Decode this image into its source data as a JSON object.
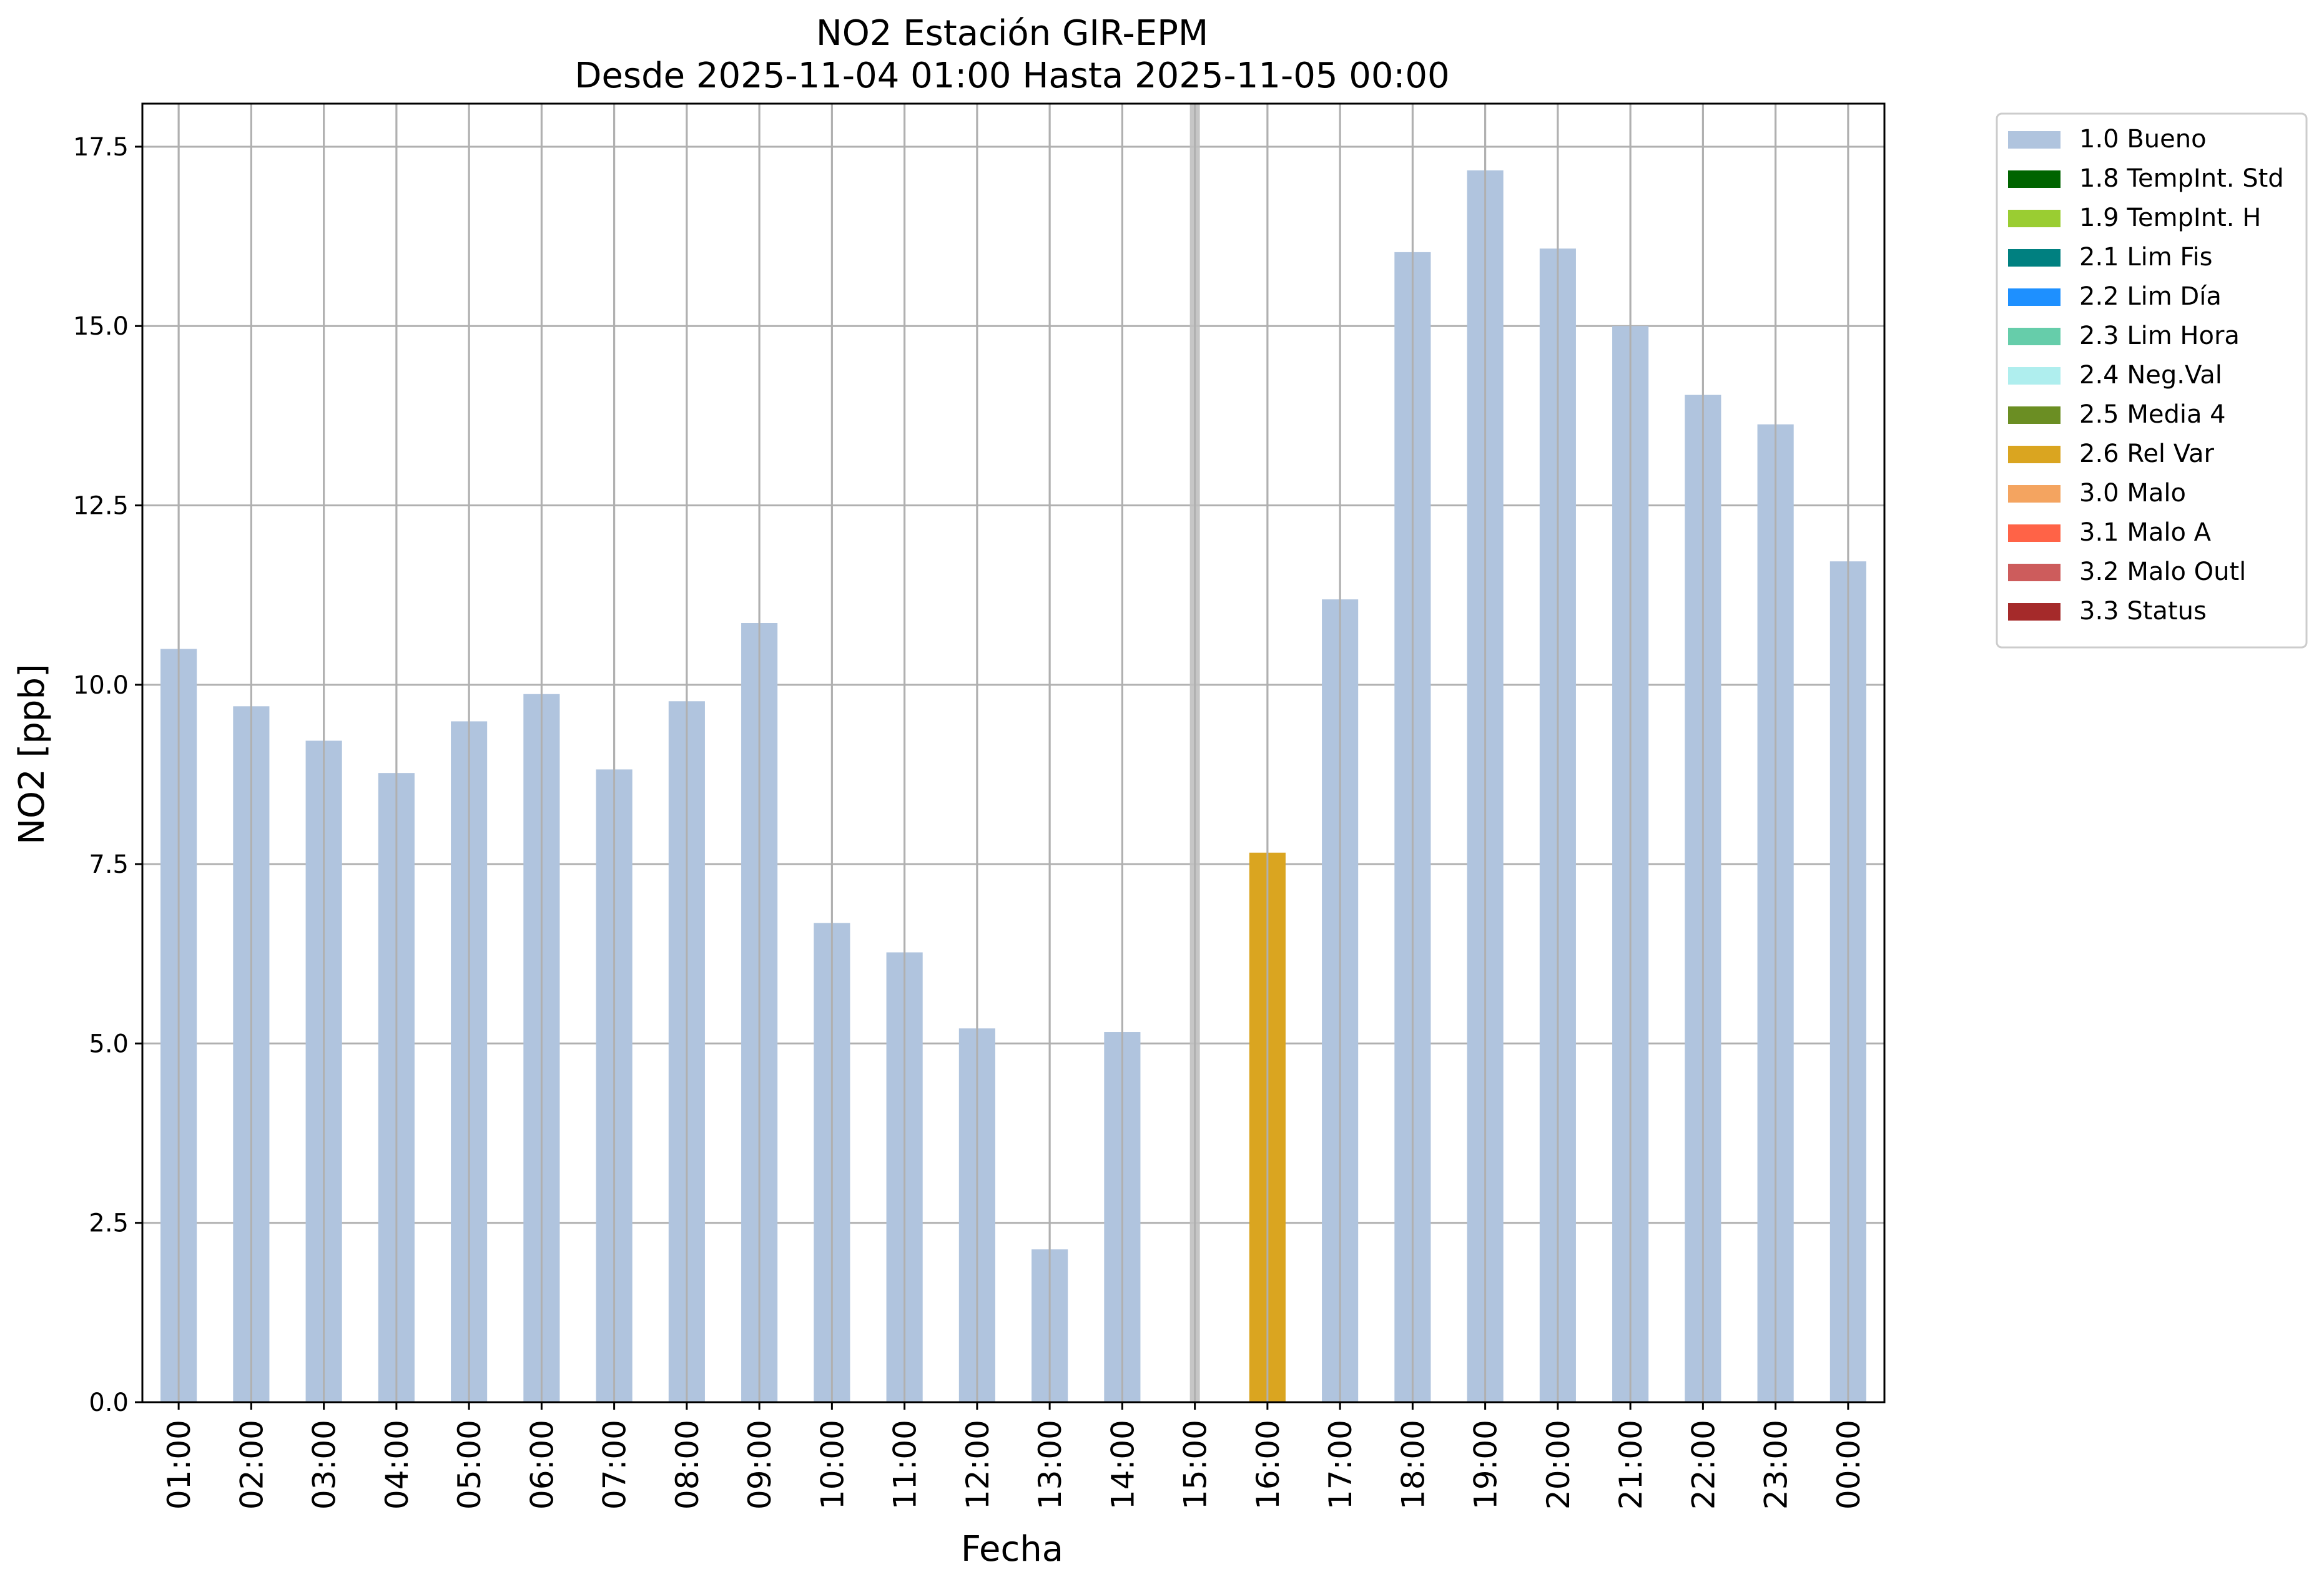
{
  "chart_data": {
    "type": "bar",
    "title": "NO2 Estación GIR-EPM",
    "subtitle": "Desde 2025-11-04 01:00 Hasta 2025-11-05 00:00",
    "xlabel": "Fecha",
    "ylabel": "NO2 [ppb]",
    "ylim": [
      0,
      18.1
    ],
    "yticks": [
      "0.0",
      "2.5",
      "5.0",
      "7.5",
      "10.0",
      "12.5",
      "15.0",
      "17.5"
    ],
    "grid": true,
    "legend_position": "outside-top-right",
    "categories": [
      "01:00",
      "02:00",
      "03:00",
      "04:00",
      "05:00",
      "06:00",
      "07:00",
      "08:00",
      "09:00",
      "10:00",
      "11:00",
      "12:00",
      "13:00",
      "14:00",
      "15:00",
      "16:00",
      "17:00",
      "18:00",
      "19:00",
      "20:00",
      "21:00",
      "22:00",
      "23:00",
      "00:00"
    ],
    "values": [
      10.5,
      9.7,
      9.22,
      8.77,
      9.49,
      9.87,
      8.82,
      9.77,
      10.86,
      6.68,
      6.27,
      5.21,
      2.13,
      5.16,
      null,
      7.66,
      11.19,
      16.03,
      17.17,
      16.08,
      15.0,
      14.04,
      13.63,
      11.72
    ],
    "flags": [
      "1.0 Bueno",
      "1.0 Bueno",
      "1.0 Bueno",
      "1.0 Bueno",
      "1.0 Bueno",
      "1.0 Bueno",
      "1.0 Bueno",
      "1.0 Bueno",
      "1.0 Bueno",
      "1.0 Bueno",
      "1.0 Bueno",
      "1.0 Bueno",
      "1.0 Bueno",
      "1.0 Bueno",
      null,
      "2.6 Rel Var",
      "1.0 Bueno",
      "1.0 Bueno",
      "1.0 Bueno",
      "1.0 Bueno",
      "1.0 Bueno",
      "1.0 Bueno",
      "1.0 Bueno",
      "1.0 Bueno"
    ],
    "missing_marker_category": "15:00",
    "missing_marker_color": "#c0c0c0",
    "legend": [
      {
        "label": "1.0 Bueno",
        "color": "#b0c4de"
      },
      {
        "label": "1.8 TempInt. Std",
        "color": "#006400"
      },
      {
        "label": "1.9 TempInt. H",
        "color": "#9acd32"
      },
      {
        "label": "2.1 Lim Fis",
        "color": "#008080"
      },
      {
        "label": "2.2 Lim Día",
        "color": "#1e90ff"
      },
      {
        "label": "2.3 Lim Hora",
        "color": "#66cdaa"
      },
      {
        "label": "2.4 Neg.Val",
        "color": "#afeeee"
      },
      {
        "label": "2.5 Media 4",
        "color": "#6b8e23"
      },
      {
        "label": "2.6 Rel Var",
        "color": "#daa520"
      },
      {
        "label": "3.0 Malo",
        "color": "#f4a460"
      },
      {
        "label": "3.1 Malo A",
        "color": "#ff6347"
      },
      {
        "label": "3.2 Malo Outl",
        "color": "#cd5c5c"
      },
      {
        "label": "3.3 Status",
        "color": "#a52a2a"
      }
    ]
  }
}
